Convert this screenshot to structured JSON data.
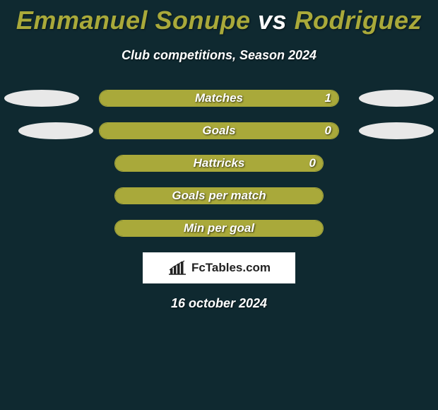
{
  "title": {
    "player1": "Emmanuel Sonupe",
    "vs": "vs",
    "player2": "Rodriguez",
    "player1_color": "#a9a93a",
    "vs_color": "#ffffff",
    "player2_color": "#a9a93a",
    "fontsize": 36
  },
  "subtitle": "Club competitions, Season 2024",
  "background_color": "#0f2930",
  "bar_fill_color": "#a9a93a",
  "bar_border_color": "#a9a93a",
  "ellipse_color": "#e8e8e8",
  "stats": [
    {
      "label": "Matches",
      "value": "1",
      "fill_pct": 100,
      "left_ellipse": true,
      "right_ellipse": true,
      "show_value": true
    },
    {
      "label": "Goals",
      "value": "0",
      "fill_pct": 100,
      "left_ellipse": true,
      "right_ellipse": true,
      "show_value": true
    },
    {
      "label": "Hattricks",
      "value": "0",
      "fill_pct": 100,
      "left_ellipse": false,
      "right_ellipse": false,
      "show_value": true
    },
    {
      "label": "Goals per match",
      "value": "",
      "fill_pct": 100,
      "left_ellipse": false,
      "right_ellipse": false,
      "show_value": false
    },
    {
      "label": "Min per goal",
      "value": "",
      "fill_pct": 100,
      "left_ellipse": false,
      "right_ellipse": false,
      "show_value": false
    }
  ],
  "logo": {
    "text": "FcTables.com",
    "icon_name": "bar-chart-icon",
    "box_bg": "#ffffff",
    "text_color": "#222222"
  },
  "date": "16 october 2024",
  "ellipse_left_offsets": [
    0,
    20
  ],
  "text_color": "#ffffff",
  "label_fontsize": 17
}
